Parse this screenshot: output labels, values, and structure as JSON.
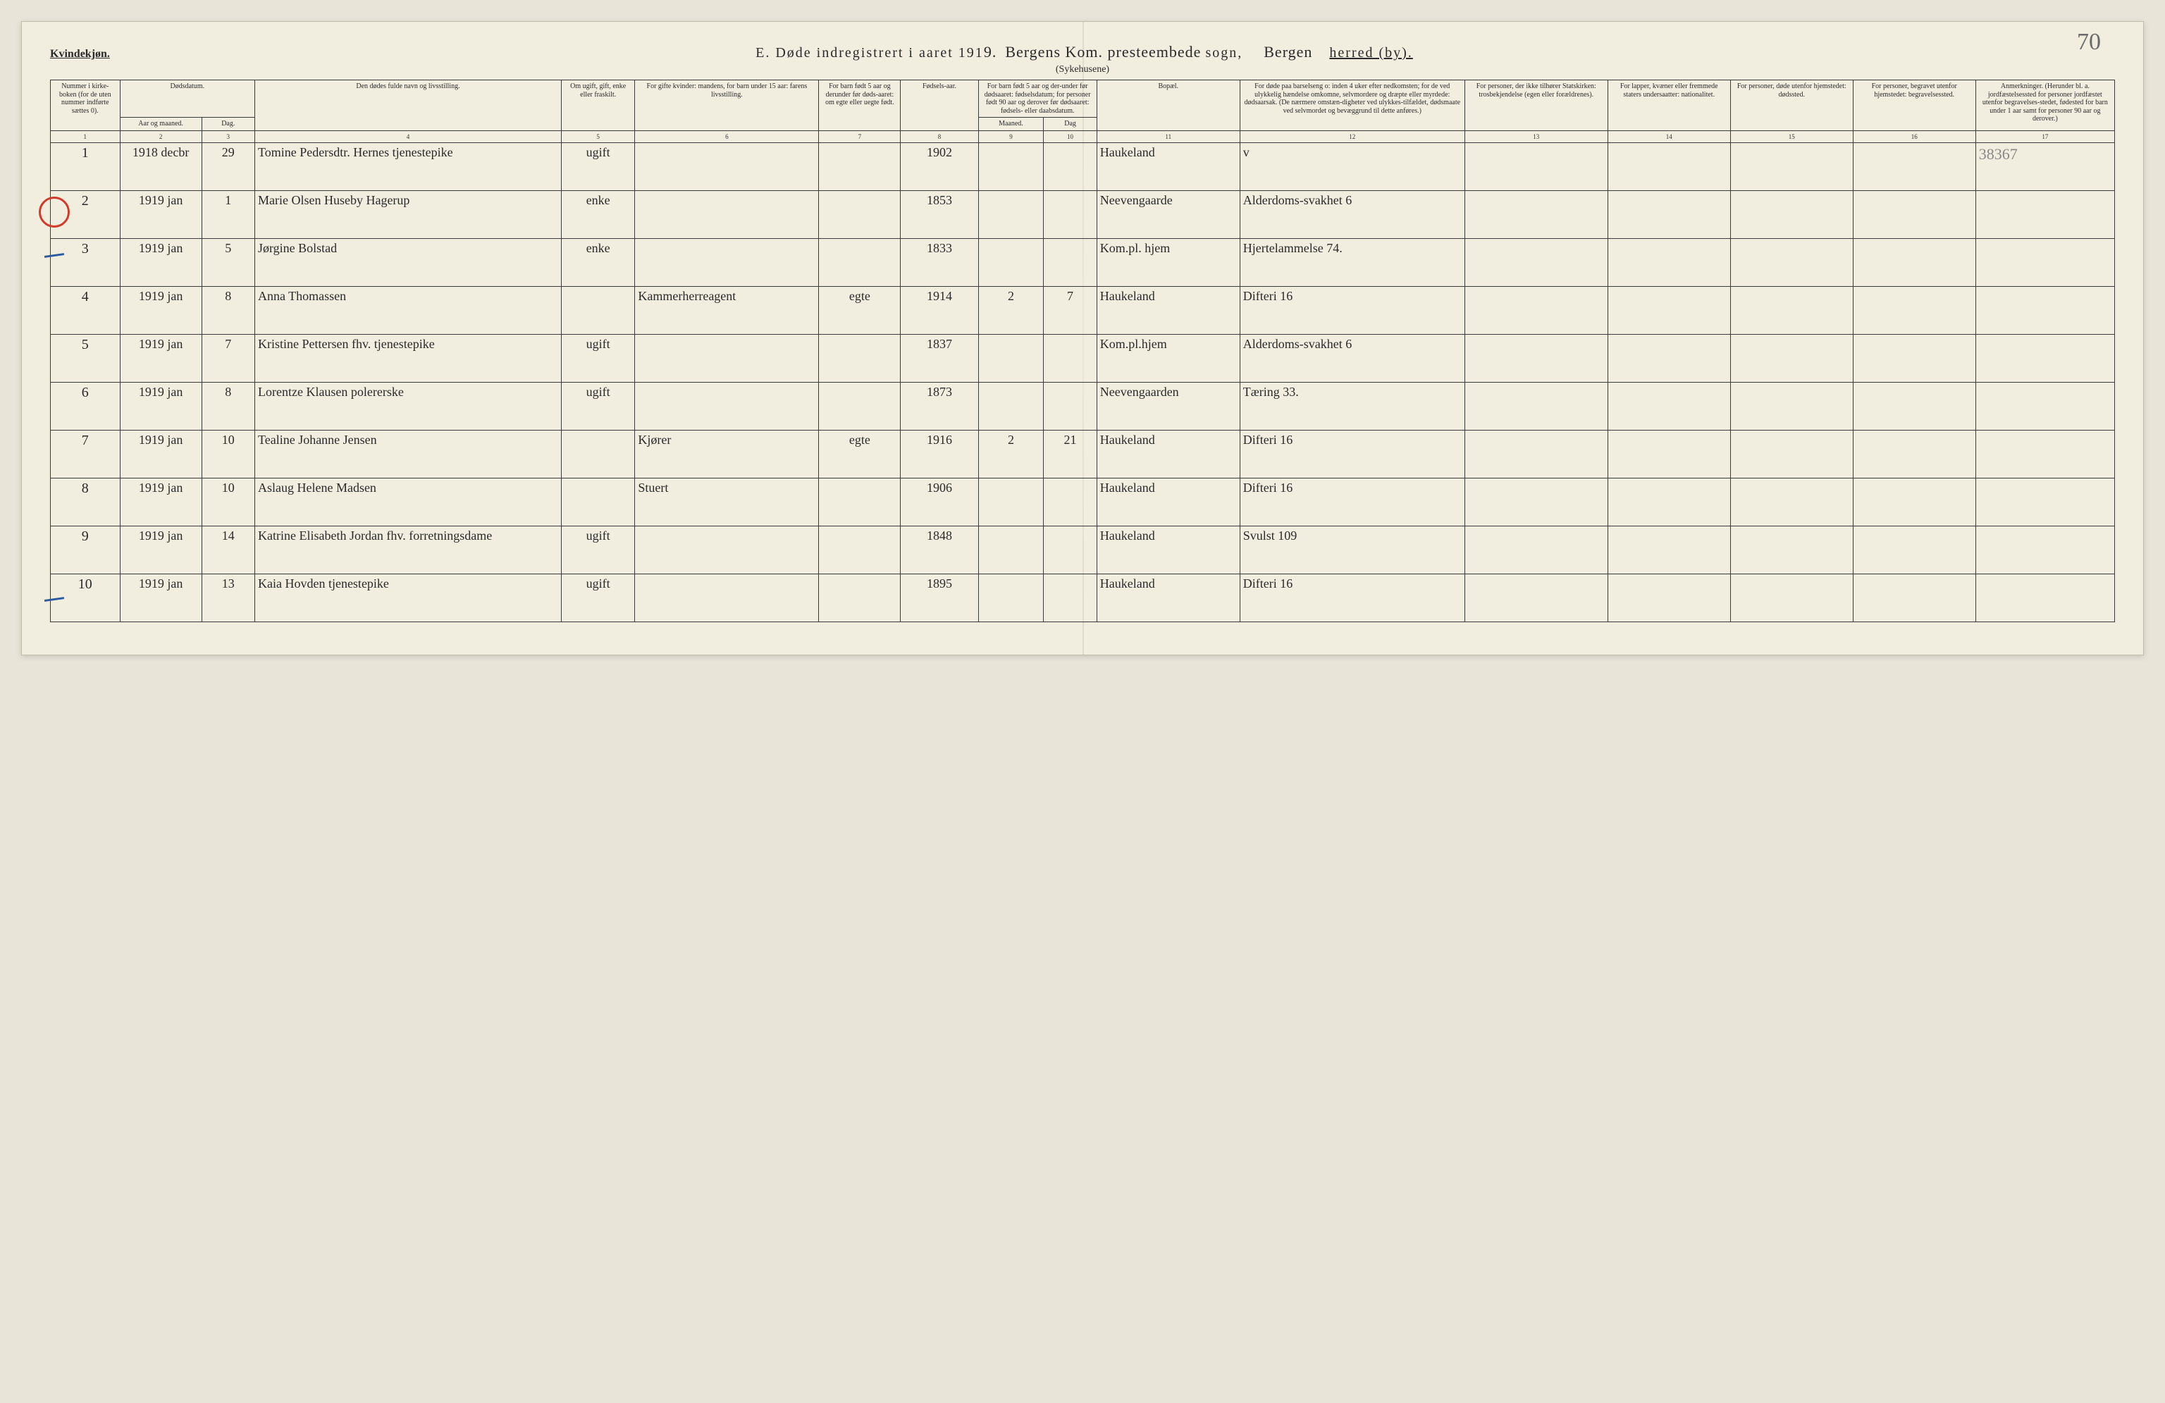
{
  "gender_label": "Kvindekjøn.",
  "title_prefix": "E.  Døde indregistrert i aaret 191",
  "year_suffix": "9.",
  "parish_script": "Bergens Kom. presteembede",
  "parish_sub": "(Sykehusene)",
  "sogn_label": "sogn,",
  "district_script": "Bergen",
  "herred_label": "herred (by).",
  "pagenum": "70",
  "col_headers": {
    "c1": "Nummer i kirke-boken (for de uten nummer indførte sættes 0).",
    "c2a": "Dødsdatum.",
    "c2b": "Aar og maaned.",
    "c3": "Dag.",
    "c4": "Den dødes fulde navn og livsstilling.",
    "c5": "Om ugift, gift, enke eller fraskilt.",
    "c6": "For gifte kvinder: mandens, for barn under 15 aar: farens livsstilling.",
    "c7": "For barn født 5 aar og derunder før døds-aaret: om egte eller uegte født.",
    "c8": "Fødsels-aar.",
    "c9": "For barn født 5 aar og der-under før dødsaaret: fødselsdatum; for personer født 90 aar og derover før dødsaaret: fødsels- eller daabsdatum.",
    "c9a": "Maaned.",
    "c9b": "Dag",
    "c11": "Bopæl.",
    "c12": "For døde paa barselseng o: inden 4 uker efter nedkomsten; for de ved ulykkelig hændelse omkomne, selvmordere og dræpte eller myrdede: dødsaarsak. (De nærmere omstæn-digheter ved ulykkes-tilfældet, dødsmaate ved selvmordet og bevæggrund til dette anføres.)",
    "c13": "For personer, der ikke tilhører Statskirken: trosbekjendelse (egen eller forældrenes).",
    "c14": "For lapper, kvæner eller fremmede staters undersaatter: nationalitet.",
    "c15": "For personer, døde utenfor hjemstedet: dødssted.",
    "c16": "For personer, begravet utenfor hjemstedet: begravelsessted.",
    "c17": "Anmerkninger. (Herunder bl. a. jordfæstelsessted for personer jordfæstet utenfor begravelses-stedet, fødested for barn under 1 aar samt for personer 90 aar og derover.)"
  },
  "colnums": [
    "1",
    "2",
    "3",
    "4",
    "5",
    "6",
    "7",
    "8",
    "9",
    "10",
    "11",
    "12",
    "13",
    "14",
    "15",
    "16",
    "17"
  ],
  "rows": [
    {
      "n": "1",
      "aar": "1918 decbr",
      "dag": "29",
      "navn": "Tomine Pedersdtr. Hernes tjenestepike",
      "stand": "ugift",
      "mandens": "",
      "egte": "",
      "faar": "1902",
      "md": "",
      "dg": "",
      "bopael": "Haukeland",
      "aarsak": "v",
      "c13": "",
      "c14": "",
      "c15": "",
      "c16": "",
      "anm": "38367"
    },
    {
      "n": "2",
      "aar": "1919 jan",
      "dag": "1",
      "navn": "Marie Olsen Huseby Hagerup",
      "stand": "enke",
      "mandens": "",
      "egte": "",
      "faar": "1853",
      "md": "",
      "dg": "",
      "bopael": "Neevengaarde",
      "aarsak": "Alderdoms-svakhet 6",
      "c13": "",
      "c14": "",
      "c15": "",
      "c16": "",
      "anm": ""
    },
    {
      "n": "3",
      "aar": "1919 jan",
      "dag": "5",
      "navn": "Jørgine Bolstad",
      "stand": "enke",
      "mandens": "",
      "egte": "",
      "faar": "1833",
      "md": "",
      "dg": "",
      "bopael": "Kom.pl. hjem",
      "aarsak": "Hjertelammelse 74.",
      "c13": "",
      "c14": "",
      "c15": "",
      "c16": "",
      "anm": ""
    },
    {
      "n": "4",
      "aar": "1919 jan",
      "dag": "8",
      "navn": "Anna Thomassen",
      "stand": "",
      "mandens": "Kammerherreagent",
      "egte": "egte",
      "faar": "1914",
      "md": "2",
      "dg": "7",
      "bopael": "Haukeland",
      "aarsak": "Difteri 16",
      "c13": "",
      "c14": "",
      "c15": "",
      "c16": "",
      "anm": ""
    },
    {
      "n": "5",
      "aar": "1919 jan",
      "dag": "7",
      "navn": "Kristine Pettersen fhv. tjenestepike",
      "stand": "ugift",
      "mandens": "",
      "egte": "",
      "faar": "1837",
      "md": "",
      "dg": "",
      "bopael": "Kom.pl.hjem",
      "aarsak": "Alderdoms-svakhet 6",
      "c13": "",
      "c14": "",
      "c15": "",
      "c16": "",
      "anm": ""
    },
    {
      "n": "6",
      "aar": "1919 jan",
      "dag": "8",
      "navn": "Lorentze Klausen polererske",
      "stand": "ugift",
      "mandens": "",
      "egte": "",
      "faar": "1873",
      "md": "",
      "dg": "",
      "bopael": "Neevengaarden",
      "aarsak": "Tæring 33.",
      "c13": "",
      "c14": "",
      "c15": "",
      "c16": "",
      "anm": ""
    },
    {
      "n": "7",
      "aar": "1919 jan",
      "dag": "10",
      "navn": "Tealine Johanne Jensen",
      "stand": "",
      "mandens": "Kjører",
      "egte": "egte",
      "faar": "1916",
      "md": "2",
      "dg": "21",
      "bopael": "Haukeland",
      "aarsak": "Difteri 16",
      "c13": "",
      "c14": "",
      "c15": "",
      "c16": "",
      "anm": ""
    },
    {
      "n": "8",
      "aar": "1919 jan",
      "dag": "10",
      "navn": "Aslaug Helene Madsen",
      "stand": "",
      "mandens": "Stuert",
      "egte": "",
      "faar": "1906",
      "md": "",
      "dg": "",
      "bopael": "Haukeland",
      "aarsak": "Difteri 16",
      "c13": "",
      "c14": "",
      "c15": "",
      "c16": "",
      "anm": ""
    },
    {
      "n": "9",
      "aar": "1919 jan",
      "dag": "14",
      "navn": "Katrine Elisabeth Jordan fhv. forretningsdame",
      "stand": "ugift",
      "mandens": "",
      "egte": "",
      "faar": "1848",
      "md": "",
      "dg": "",
      "bopael": "Haukeland",
      "aarsak": "Svulst 109",
      "c13": "",
      "c14": "",
      "c15": "",
      "c16": "",
      "anm": ""
    },
    {
      "n": "10",
      "aar": "1919 jan",
      "dag": "13",
      "navn": "Kaia Hovden tjenestepike",
      "stand": "ugift",
      "mandens": "",
      "egte": "",
      "faar": "1895",
      "md": "",
      "dg": "",
      "bopael": "Haukeland",
      "aarsak": "Difteri 16",
      "c13": "",
      "c14": "",
      "c15": "",
      "c16": "",
      "anm": ""
    }
  ],
  "column_widths_pct": [
    3.4,
    4.0,
    2.6,
    15.0,
    3.6,
    9.0,
    4.0,
    3.8,
    3.2,
    2.6,
    7.0,
    11.0,
    7.0,
    6.0,
    6.0,
    6.0,
    6.8
  ],
  "colors": {
    "page_bg": "#f1eedf",
    "border": "#3a3a3a",
    "red_circle": "#d23b2a",
    "blue_tick": "#2a5aa0",
    "remark_gray": "#888888"
  }
}
